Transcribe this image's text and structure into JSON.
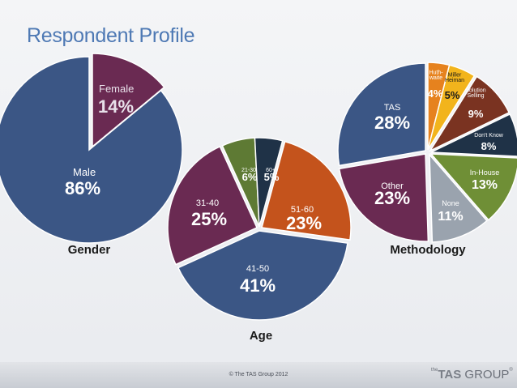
{
  "slide": {
    "title": "Respondent Profile",
    "copyright": "© The TAS Group 2012",
    "logo": {
      "prefix": "the",
      "strong": "TAS",
      "rest": " GROUP",
      "mark": "®"
    }
  },
  "chart_data": [
    {
      "type": "pie",
      "title": "Gender",
      "slices": [
        {
          "label": "Female",
          "value": 14,
          "display": "14%",
          "color": "#6a2a52"
        },
        {
          "label": "Male",
          "value": 86,
          "display": "86%",
          "color": "#3b5685"
        }
      ]
    },
    {
      "type": "pie",
      "title": "Age",
      "slices": [
        {
          "label": "21-30",
          "value": 6,
          "display": "6%",
          "color": "#5e7a34"
        },
        {
          "label": "60+",
          "value": 5,
          "display": "5%",
          "color": "#1f3247"
        },
        {
          "label": "51-60",
          "value": 23,
          "display": "23%",
          "color": "#c4531c"
        },
        {
          "label": "41-50",
          "value": 41,
          "display": "41%",
          "color": "#3b5685"
        },
        {
          "label": "31-40",
          "value": 25,
          "display": "25%",
          "color": "#6a2a52"
        }
      ]
    },
    {
      "type": "pie",
      "title": "Methodology",
      "slices": [
        {
          "label": "Huth-\nwaite",
          "value": 4,
          "display": "4%",
          "color": "#e6821e"
        },
        {
          "label": "Miller\nHeiman",
          "value": 5,
          "display": "5%",
          "color": "#f2b41c"
        },
        {
          "label": "Solution\nSelling",
          "value": 9,
          "display": "9%",
          "color": "#7a3321"
        },
        {
          "label": "Don't Know",
          "value": 8,
          "display": "8%",
          "color": "#1f3247"
        },
        {
          "label": "In-House",
          "value": 13,
          "display": "13%",
          "color": "#6f8f36"
        },
        {
          "label": "None",
          "value": 11,
          "display": "11%",
          "color": "#9aa3ae"
        },
        {
          "label": "Other",
          "value": 23,
          "display": "23%",
          "color": "#6a2a52"
        },
        {
          "label": "TAS",
          "value": 28,
          "display": "28%",
          "color": "#3b5685"
        }
      ]
    }
  ]
}
